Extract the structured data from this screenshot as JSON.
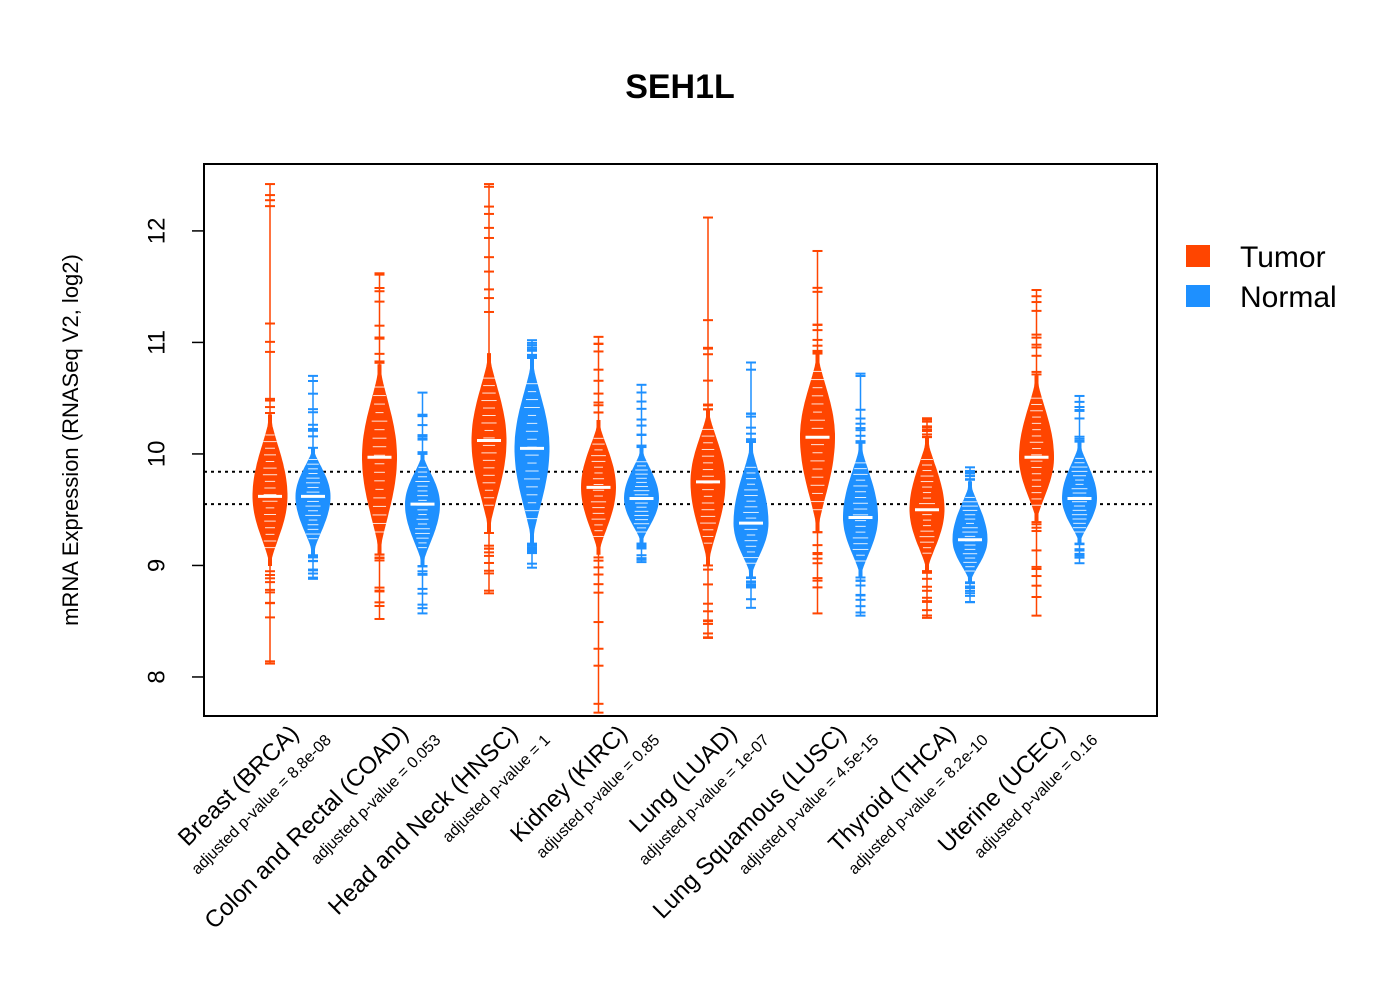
{
  "chart_data": {
    "type": "violin",
    "title": "SEH1L",
    "ylabel": "mRNA Expression (RNASeq V2, log2)",
    "xlabel": "",
    "ylim": [
      7.65,
      12.6
    ],
    "yticks": [
      "8",
      "9",
      "10",
      "11",
      "12"
    ],
    "reference_lines": [
      9.55,
      9.84
    ],
    "grid": false,
    "legend_position": "right",
    "legend": [
      {
        "label": "Tumor",
        "color": "#FF4500"
      },
      {
        "label": "Normal",
        "color": "#1E90FF"
      }
    ],
    "colors": {
      "tumor": "#FF4500",
      "normal": "#1E90FF"
    },
    "categories": [
      {
        "label": "Breast (BRCA)",
        "pvalue_label": "adjusted p-value = 8.8e-08",
        "tumor": {
          "min": 8.12,
          "max": 12.42,
          "median": 9.62,
          "q1": 9.4,
          "q3": 9.9,
          "body": [
            9.0,
            10.35
          ]
        },
        "normal": {
          "min": 8.88,
          "max": 10.7,
          "median": 9.62,
          "q1": 9.45,
          "q3": 9.8,
          "body": [
            9.1,
            10.05
          ]
        }
      },
      {
        "label": "Colon and Rectal (COAD)",
        "pvalue_label": "adjusted p-value = 0.053",
        "tumor": {
          "min": 8.52,
          "max": 11.62,
          "median": 9.97,
          "q1": 9.6,
          "q3": 10.3,
          "body": [
            9.1,
            10.8
          ]
        },
        "normal": {
          "min": 8.57,
          "max": 10.55,
          "median": 9.55,
          "q1": 9.4,
          "q3": 9.7,
          "body": [
            9.0,
            10.0
          ]
        }
      },
      {
        "label": "Head and Neck (HNSC)",
        "pvalue_label": "adjusted p-value = 1",
        "tumor": {
          "min": 8.75,
          "max": 12.42,
          "median": 10.12,
          "q1": 9.9,
          "q3": 10.35,
          "body": [
            9.3,
            10.9
          ]
        },
        "normal": {
          "min": 8.98,
          "max": 11.02,
          "median": 10.05,
          "q1": 9.75,
          "q3": 10.3,
          "body": [
            9.2,
            10.85
          ]
        }
      },
      {
        "label": "Kidney (KIRC)",
        "pvalue_label": "adjusted p-value = 0.85",
        "tumor": {
          "min": 7.68,
          "max": 11.05,
          "median": 9.7,
          "q1": 9.5,
          "q3": 9.9,
          "body": [
            9.1,
            10.3
          ]
        },
        "normal": {
          "min": 9.03,
          "max": 10.62,
          "median": 9.6,
          "q1": 9.45,
          "q3": 9.75,
          "body": [
            9.2,
            10.05
          ]
        }
      },
      {
        "label": "Lung (LUAD)",
        "pvalue_label": "adjusted p-value = 1e-07",
        "tumor": {
          "min": 8.35,
          "max": 12.12,
          "median": 9.75,
          "q1": 9.5,
          "q3": 9.95,
          "body": [
            9.0,
            10.4
          ]
        },
        "normal": {
          "min": 8.62,
          "max": 10.82,
          "median": 9.38,
          "q1": 9.2,
          "q3": 9.55,
          "body": [
            8.9,
            10.1
          ]
        }
      },
      {
        "label": "Lung Squamous (LUSC)",
        "pvalue_label": "adjusted p-value = 4.5e-15",
        "tumor": {
          "min": 8.57,
          "max": 11.82,
          "median": 10.15,
          "q1": 9.8,
          "q3": 10.5,
          "body": [
            9.3,
            10.9
          ]
        },
        "normal": {
          "min": 8.55,
          "max": 10.72,
          "median": 9.43,
          "q1": 9.25,
          "q3": 9.65,
          "body": [
            8.9,
            10.1
          ]
        }
      },
      {
        "label": "Thyroid (THCA)",
        "pvalue_label": "adjusted p-value = 8.2e-10",
        "tumor": {
          "min": 8.53,
          "max": 10.32,
          "median": 9.5,
          "q1": 9.35,
          "q3": 9.65,
          "body": [
            8.95,
            10.15
          ]
        },
        "normal": {
          "min": 8.67,
          "max": 9.88,
          "median": 9.23,
          "q1": 9.1,
          "q3": 9.4,
          "body": [
            8.85,
            9.75
          ]
        }
      },
      {
        "label": "Uterine (UCEC)",
        "pvalue_label": "adjusted p-value = 0.16",
        "tumor": {
          "min": 8.55,
          "max": 11.47,
          "median": 9.97,
          "q1": 9.75,
          "q3": 10.2,
          "body": [
            9.4,
            10.7
          ]
        },
        "normal": {
          "min": 9.02,
          "max": 10.52,
          "median": 9.6,
          "q1": 9.45,
          "q3": 9.75,
          "body": [
            9.2,
            10.1
          ]
        }
      }
    ]
  }
}
